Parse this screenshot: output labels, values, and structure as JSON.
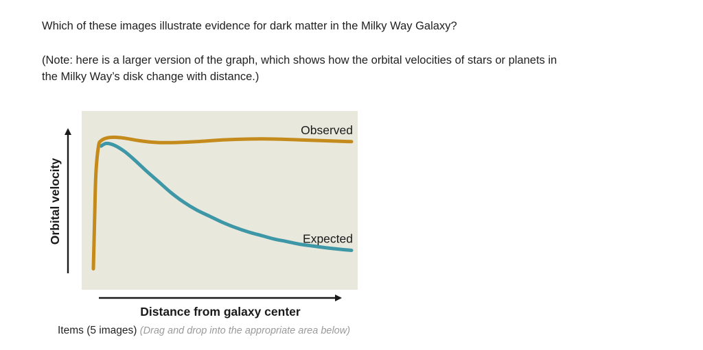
{
  "question": "Which of these images illustrate evidence for dark matter in the Milky Way Galaxy?",
  "note": "(Note: here is a larger version of the graph, which shows how the orbital velocities of stars or planets in the Milky Way’s disk change with distance.)",
  "footer": {
    "items_label": "Items (5 images)",
    "hint": "(Drag and drop into the appropriate area below)"
  },
  "chart_data": {
    "type": "line",
    "title": "",
    "xlabel": "Distance from galaxy center",
    "ylabel": "Orbital velocity",
    "xlim": [
      0,
      100
    ],
    "ylim": [
      0,
      100
    ],
    "grid": false,
    "legend": "inline labels at right end of each line",
    "background_color": "#e9e8dc",
    "series": [
      {
        "name": "Observed",
        "color": "#c48a1c",
        "x": [
          0,
          0.5,
          1,
          2,
          3,
          5,
          8,
          12,
          18,
          25,
          32,
          40,
          50,
          60,
          70,
          80,
          90,
          100
        ],
        "y": [
          10,
          40,
          65,
          80,
          83,
          84.5,
          85,
          84.5,
          83,
          82,
          82,
          82.5,
          83.5,
          84,
          84,
          83.5,
          83,
          82.5
        ]
      },
      {
        "name": "Expected",
        "color": "#3d97a6",
        "x": [
          3,
          5,
          8,
          12,
          16,
          20,
          25,
          30,
          35,
          40,
          45,
          50,
          55,
          60,
          65,
          70,
          75,
          80,
          85,
          90,
          95,
          100
        ],
        "y": [
          80,
          81.5,
          80.5,
          77,
          72,
          66.5,
          60,
          53.5,
          48,
          43.5,
          40,
          36.5,
          33.5,
          31,
          29,
          27,
          25.5,
          24,
          23,
          22,
          21.2,
          20.5
        ]
      }
    ]
  }
}
